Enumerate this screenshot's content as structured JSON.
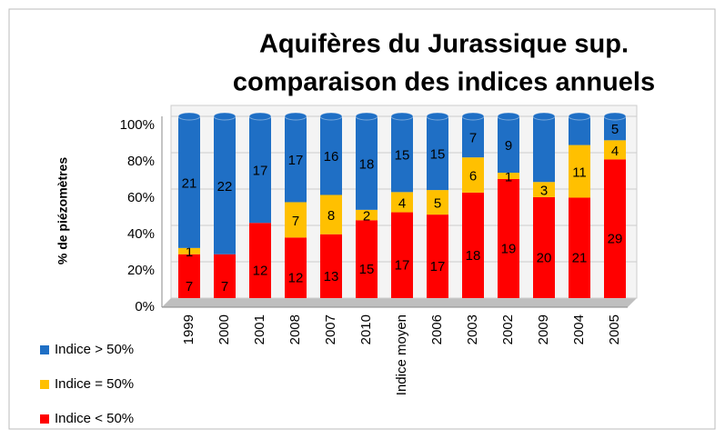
{
  "chart_data": {
    "type": "bar",
    "stacking": "percent",
    "title": [
      "Aquifères du Jurassique sup.",
      "comparaison des indices annuels"
    ],
    "y_label": "% de piézomètres",
    "categories": [
      "1999",
      "2000",
      "2001",
      "2008",
      "2007",
      "2010",
      "Indice moyen",
      "2006",
      "2003",
      "2002",
      "2009",
      "2004",
      "2005"
    ],
    "series": [
      {
        "name": "Indice < 50%",
        "color": "#ff0000",
        "values": [
          7,
          7,
          12,
          12,
          13,
          15,
          17,
          17,
          18,
          19,
          20,
          21,
          29
        ]
      },
      {
        "name": "Indice = 50%",
        "color": "#ffc000",
        "values": [
          1,
          null,
          null,
          7,
          8,
          2,
          4,
          5,
          6,
          1,
          3,
          11,
          4
        ]
      },
      {
        "name": "Indice > 50%",
        "color": "#1f6fc5",
        "values": [
          21,
          22,
          17,
          17,
          16,
          18,
          15,
          15,
          7,
          9,
          13,
          6,
          5
        ],
        "value_labels": [
          "21",
          "22",
          "17",
          "17",
          "16",
          "18",
          "15",
          "15",
          "7",
          "9",
          null,
          null,
          "5"
        ]
      }
    ],
    "ylim": [
      0,
      100
    ],
    "yticks": [
      {
        "value": 0,
        "label": "0%"
      },
      {
        "value": 20,
        "label": "20%"
      },
      {
        "value": 40,
        "label": "40%"
      },
      {
        "value": 60,
        "label": "60%"
      },
      {
        "value": 80,
        "label": "80%"
      },
      {
        "value": 100,
        "label": "100%"
      }
    ],
    "grid": true,
    "legend": "bottom-left"
  }
}
